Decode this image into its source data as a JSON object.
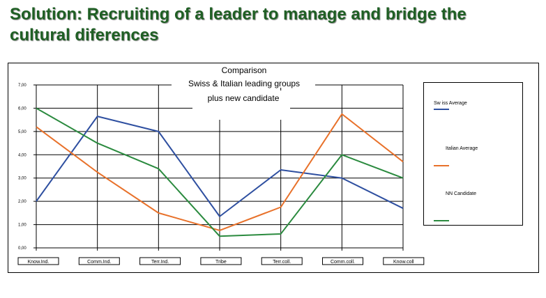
{
  "slide": {
    "title_line1": "Solution: Recruiting of a leader to manage and bridge the",
    "title_line2": "cultural diferences"
  },
  "chart_data": {
    "type": "line",
    "title_lines": [
      "Comparison",
      "Swiss  &  Italian leading groups",
      "plus  new candidate"
    ],
    "categories": [
      "Know.Ind.",
      "Comm.Ind.",
      "Terr.Ind.",
      "Tribe",
      "Terr.coll.",
      "Comm.coll.",
      "Know.coll"
    ],
    "y_ticks": [
      "0,00",
      "1,00",
      "2,00",
      "3,00",
      "4,00",
      "5,00",
      "6,00",
      "7,00"
    ],
    "ylim": [
      0,
      7
    ],
    "grid": true,
    "legend_position": "right",
    "series": [
      {
        "name": "Sw iss Average",
        "color": "#2e4fa0",
        "values": [
          2.0,
          5.65,
          5.0,
          1.35,
          3.35,
          3.0,
          1.7
        ]
      },
      {
        "name": "Italian Average",
        "color": "#e8712a",
        "values": [
          5.2,
          3.25,
          1.5,
          0.75,
          1.75,
          5.75,
          3.7
        ]
      },
      {
        "name": "NN Candidate",
        "color": "#2a8a3e",
        "values": [
          6.0,
          4.5,
          3.4,
          0.5,
          0.6,
          4.0,
          3.0
        ]
      }
    ]
  }
}
